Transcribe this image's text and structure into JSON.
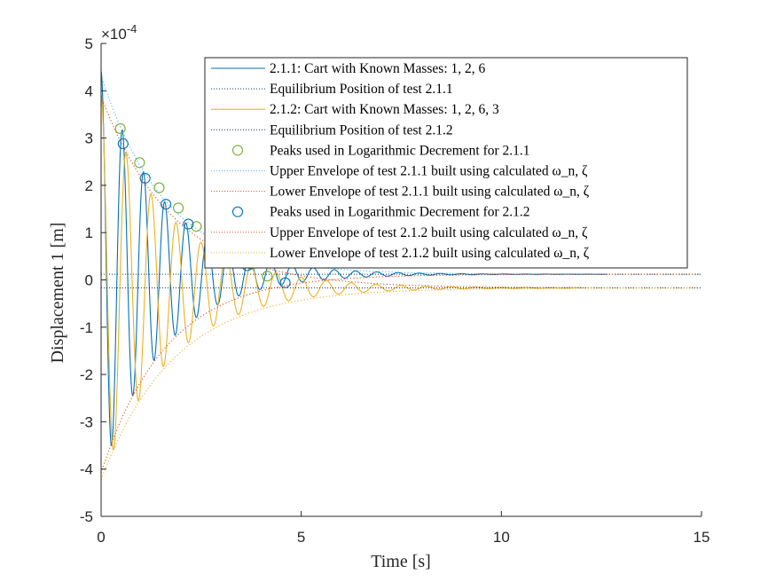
{
  "chart_data": {
    "type": "line",
    "title": "",
    "xlabel": "Time [s]",
    "ylabel": "Displacement 1 [m]",
    "y_exponent_label": "×10",
    "y_exponent_power": "-4",
    "xlim": [
      0,
      15
    ],
    "ylim": [
      -5,
      5
    ],
    "x_ticks": [
      "0",
      "5",
      "10",
      "15"
    ],
    "y_ticks": [
      "-5",
      "-4",
      "-3",
      "-2",
      "-1",
      "0",
      "1",
      "2",
      "3",
      "4",
      "5"
    ],
    "grid": false,
    "legend_position": "top-right",
    "colors": {
      "test_211": "#0072BD",
      "test_212": "#EDB120",
      "peaks_211": "#77AC30",
      "peaks_212": "#0072BD",
      "upper_env_211": "#4DBEEE",
      "lower_env_211": "#D95319",
      "upper_env_212": "#D95319",
      "lower_env_212": "#EDB120",
      "equilibrium": "#0D3F6B"
    },
    "series": [
      {
        "name": "2.1.1: Cart with Known Masses: 1, 2, 6",
        "kind": "signal",
        "x0": 0.0,
        "x_end": 12.6,
        "amplitude": 4.3,
        "decay_rate": 0.65,
        "period": 0.53,
        "equilibrium": 0.12
      },
      {
        "name": "Equilibrium Position of test 2.1.1",
        "kind": "hline",
        "y": 0.12,
        "x_range": [
          0,
          15
        ]
      },
      {
        "name": "2.1.2: Cart with Known Masses: 1, 2, 6, 3",
        "kind": "signal",
        "x0": 0.0,
        "x_end": 12.0,
        "amplitude": 4.1,
        "decay_rate": 0.58,
        "period": 0.625,
        "equilibrium": -0.17
      },
      {
        "name": "Equilibrium Position of test 2.1.2",
        "kind": "hline",
        "y": -0.17,
        "x_range": [
          0,
          15
        ]
      },
      {
        "name": "Peaks used in Logarithmic Decrement for 2.1.1",
        "kind": "markers",
        "x": [
          0.48,
          0.96,
          1.45,
          1.93,
          2.38,
          2.85,
          3.3,
          3.75,
          4.15
        ],
        "y": [
          3.2,
          2.48,
          1.95,
          1.52,
          1.13,
          0.82,
          0.55,
          0.33,
          0.08
        ]
      },
      {
        "name": "Upper Envelope of test 2.1.1 built using calculated ω_n, ζ",
        "kind": "envelope",
        "equilibrium": 0.12,
        "amplitude": 4.2,
        "decay_rate": 0.62,
        "sign": 1
      },
      {
        "name": "Lower Envelope of test 2.1.1 built using calculated ω_n, ζ",
        "kind": "envelope",
        "equilibrium": 0.12,
        "amplitude": 4.2,
        "decay_rate": 0.62,
        "sign": -1
      },
      {
        "name": "Peaks used in Logarithmic Decrement for 2.1.2",
        "kind": "markers",
        "x": [
          0.55,
          1.1,
          1.62,
          2.18,
          2.72,
          3.25,
          3.65,
          4.6
        ],
        "y": [
          2.88,
          2.15,
          1.6,
          1.18,
          0.78,
          0.48,
          0.3,
          -0.06
        ]
      },
      {
        "name": "Upper Envelope of test 2.1.2 built using calculated ω_n, ζ",
        "kind": "envelope",
        "equilibrium": -0.17,
        "amplitude": 4.05,
        "decay_rate": 0.55,
        "sign": 1
      },
      {
        "name": "Lower Envelope of test 2.1.2 built using calculated ω_n, ζ",
        "kind": "envelope",
        "equilibrium": -0.17,
        "amplitude": 4.05,
        "decay_rate": 0.55,
        "sign": -1
      }
    ]
  }
}
